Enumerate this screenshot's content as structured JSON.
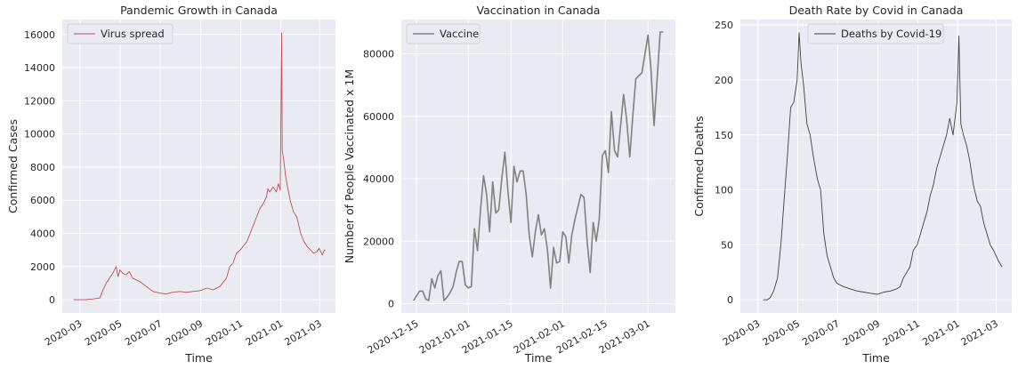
{
  "theme": {
    "plot_bg": "#eaeaf2",
    "grid": "#ffffff",
    "text": "#262626"
  },
  "chart_data": [
    {
      "type": "line",
      "title": "Pandemic Growth in Canada",
      "xlabel": "Time",
      "ylabel": "Confirmed Cases",
      "x_ticks": [
        "2020-03",
        "2020-05",
        "2020-07",
        "2020-09",
        "2020-11",
        "2021-01",
        "2021-03"
      ],
      "y_ticks": [
        "0",
        "2000",
        "4000",
        "6000",
        "8000",
        "10000",
        "12000",
        "14000",
        "16000"
      ],
      "ylim": [
        -800,
        16900
      ],
      "xlim": [
        "2020-02-03",
        "2021-03-25"
      ],
      "legend": "top-left",
      "grid": true,
      "series": [
        {
          "name": "Virus spread",
          "color": "#c44e52",
          "x": [
            "2020-02-20",
            "2020-03-10",
            "2020-03-20",
            "2020-03-31",
            "2020-04-05",
            "2020-04-10",
            "2020-04-15",
            "2020-04-20",
            "2020-04-25",
            "2020-04-28",
            "2020-05-01",
            "2020-05-05",
            "2020-05-10",
            "2020-05-15",
            "2020-05-20",
            "2020-05-25",
            "2020-05-31",
            "2020-06-10",
            "2020-06-20",
            "2020-06-30",
            "2020-07-10",
            "2020-07-20",
            "2020-07-31",
            "2020-08-10",
            "2020-08-20",
            "2020-08-31",
            "2020-09-10",
            "2020-09-20",
            "2020-09-30",
            "2020-10-10",
            "2020-10-15",
            "2020-10-20",
            "2020-10-25",
            "2020-10-31",
            "2020-11-10",
            "2020-11-20",
            "2020-11-30",
            "2020-12-05",
            "2020-12-10",
            "2020-12-12",
            "2020-12-15",
            "2020-12-20",
            "2020-12-25",
            "2020-12-28",
            "2020-12-31",
            "2021-01-02",
            "2021-01-03",
            "2021-01-05",
            "2021-01-08",
            "2021-01-10",
            "2021-01-15",
            "2021-01-20",
            "2021-01-25",
            "2021-01-31",
            "2021-02-05",
            "2021-02-10",
            "2021-02-15",
            "2021-02-20",
            "2021-02-25",
            "2021-02-28",
            "2021-03-05",
            "2021-03-08",
            "2021-03-10"
          ],
          "values": [
            0,
            5,
            40,
            100,
            600,
            1000,
            1300,
            1600,
            2000,
            1400,
            1800,
            1600,
            1500,
            1700,
            1300,
            1200,
            1100,
            800,
            500,
            400,
            350,
            450,
            500,
            450,
            500,
            550,
            700,
            600,
            800,
            1300,
            2000,
            2200,
            2800,
            3000,
            3500,
            4500,
            5500,
            5800,
            6200,
            6700,
            6500,
            6800,
            6500,
            7000,
            6600,
            16100,
            9000,
            8500,
            7500,
            7000,
            6000,
            5300,
            5000,
            4000,
            3500,
            3200,
            3000,
            2800,
            2900,
            3100,
            2700,
            3000,
            3000
          ]
        }
      ]
    },
    {
      "type": "line",
      "title": "Vaccination in Canada",
      "xlabel": "Time",
      "ylabel": "Number of People Vaccinated x 1M",
      "x_ticks": [
        "2020-12-15",
        "2021-01-01",
        "2021-01-15",
        "2021-02-01",
        "2021-02-15",
        "2021-03-01"
      ],
      "y_ticks": [
        "0",
        "20000",
        "40000",
        "60000",
        "80000"
      ],
      "ylim": [
        -3000,
        91000
      ],
      "xlim": [
        "2020-12-10",
        "2021-03-10"
      ],
      "legend": "top-left",
      "grid": true,
      "series": [
        {
          "name": "Vaccine",
          "color": "#808080",
          "x": [
            "2020-12-14",
            "2020-12-15",
            "2020-12-16",
            "2020-12-17",
            "2020-12-18",
            "2020-12-19",
            "2020-12-20",
            "2020-12-21",
            "2020-12-22",
            "2020-12-23",
            "2020-12-24",
            "2020-12-25",
            "2020-12-26",
            "2020-12-27",
            "2020-12-28",
            "2020-12-29",
            "2020-12-30",
            "2020-12-31",
            "2021-01-01",
            "2021-01-02",
            "2021-01-03",
            "2021-01-04",
            "2021-01-05",
            "2021-01-06",
            "2021-01-07",
            "2021-01-08",
            "2021-01-09",
            "2021-01-10",
            "2021-01-11",
            "2021-01-12",
            "2021-01-13",
            "2021-01-14",
            "2021-01-15",
            "2021-01-16",
            "2021-01-17",
            "2021-01-18",
            "2021-01-19",
            "2021-01-20",
            "2021-01-21",
            "2021-01-22",
            "2021-01-23",
            "2021-01-24",
            "2021-01-25",
            "2021-01-26",
            "2021-01-27",
            "2021-01-28",
            "2021-01-29",
            "2021-01-30",
            "2021-01-31",
            "2021-02-01",
            "2021-02-02",
            "2021-02-03",
            "2021-02-04",
            "2021-02-05",
            "2021-02-06",
            "2021-02-07",
            "2021-02-08",
            "2021-02-09",
            "2021-02-10",
            "2021-02-11",
            "2021-02-12",
            "2021-02-13",
            "2021-02-14",
            "2021-02-15",
            "2021-02-16",
            "2021-02-17",
            "2021-02-18",
            "2021-02-19",
            "2021-02-20",
            "2021-02-21",
            "2021-02-22",
            "2021-02-23",
            "2021-02-24",
            "2021-02-25",
            "2021-02-26",
            "2021-02-27",
            "2021-02-28",
            "2021-03-01",
            "2021-03-02",
            "2021-03-03",
            "2021-03-04",
            "2021-03-05",
            "2021-03-06"
          ],
          "values": [
            1000,
            2500,
            4000,
            4000,
            1500,
            1000,
            8000,
            5000,
            9000,
            10500,
            1000,
            2000,
            3500,
            5500,
            10000,
            13500,
            13500,
            6000,
            5000,
            5500,
            24000,
            17000,
            30000,
            41000,
            35000,
            23000,
            39000,
            29000,
            30000,
            40000,
            48500,
            36000,
            26000,
            44000,
            39000,
            42500,
            42500,
            35000,
            22000,
            15000,
            23000,
            28500,
            22000,
            24000,
            17000,
            5000,
            18000,
            13000,
            13500,
            23000,
            21500,
            13000,
            22000,
            27000,
            31000,
            35000,
            34000,
            20000,
            10000,
            26000,
            20000,
            27000,
            47500,
            49000,
            42000,
            61500,
            49000,
            47000,
            57000,
            67000,
            59000,
            47000,
            60000,
            72000,
            73000,
            74000,
            80000,
            86000,
            75000,
            57000,
            72000,
            87000,
            87000
          ]
        }
      ]
    },
    {
      "type": "line",
      "title": "Death Rate by Covid in Canada",
      "xlabel": "Time",
      "ylabel": "Confirmed Deaths",
      "x_ticks": [
        "2020-03",
        "2020-05",
        "2020-07",
        "2020-09",
        "2020-11",
        "2021-01",
        "2021-03"
      ],
      "y_ticks": [
        "0",
        "50",
        "100",
        "150",
        "200",
        "250"
      ],
      "ylim": [
        -12,
        255
      ],
      "xlim": [
        "2020-02-03",
        "2021-03-25"
      ],
      "legend": "top-center",
      "grid": true,
      "series": [
        {
          "name": "Deaths by Covid-19",
          "color": "#404040",
          "x": [
            "2020-03-09",
            "2020-03-15",
            "2020-03-20",
            "2020-03-25",
            "2020-03-31",
            "2020-04-05",
            "2020-04-10",
            "2020-04-15",
            "2020-04-20",
            "2020-04-25",
            "2020-04-30",
            "2020-05-03",
            "2020-05-06",
            "2020-05-10",
            "2020-05-15",
            "2020-05-20",
            "2020-05-25",
            "2020-05-31",
            "2020-06-05",
            "2020-06-10",
            "2020-06-15",
            "2020-06-20",
            "2020-06-25",
            "2020-06-30",
            "2020-07-10",
            "2020-07-20",
            "2020-07-31",
            "2020-08-10",
            "2020-08-20",
            "2020-08-31",
            "2020-09-10",
            "2020-09-20",
            "2020-09-30",
            "2020-10-05",
            "2020-10-10",
            "2020-10-15",
            "2020-10-20",
            "2020-10-25",
            "2020-10-31",
            "2020-11-05",
            "2020-11-10",
            "2020-11-15",
            "2020-11-20",
            "2020-11-25",
            "2020-11-30",
            "2020-12-05",
            "2020-12-10",
            "2020-12-15",
            "2020-12-20",
            "2020-12-25",
            "2020-12-31",
            "2021-01-03",
            "2021-01-06",
            "2021-01-10",
            "2021-01-15",
            "2021-01-20",
            "2021-01-25",
            "2021-01-31",
            "2021-02-05",
            "2021-02-10",
            "2021-02-15",
            "2021-02-20",
            "2021-02-25",
            "2021-03-01",
            "2021-03-05",
            "2021-03-10"
          ],
          "values": [
            0,
            0,
            2,
            8,
            20,
            50,
            90,
            130,
            175,
            180,
            200,
            243,
            215,
            195,
            160,
            150,
            130,
            110,
            100,
            60,
            40,
            30,
            20,
            15,
            12,
            10,
            8,
            7,
            6,
            5,
            7,
            8,
            10,
            12,
            20,
            25,
            30,
            45,
            50,
            60,
            70,
            80,
            95,
            105,
            120,
            130,
            140,
            150,
            165,
            150,
            180,
            240,
            160,
            150,
            140,
            125,
            105,
            90,
            85,
            70,
            60,
            50,
            45,
            40,
            35,
            30
          ]
        }
      ]
    }
  ]
}
